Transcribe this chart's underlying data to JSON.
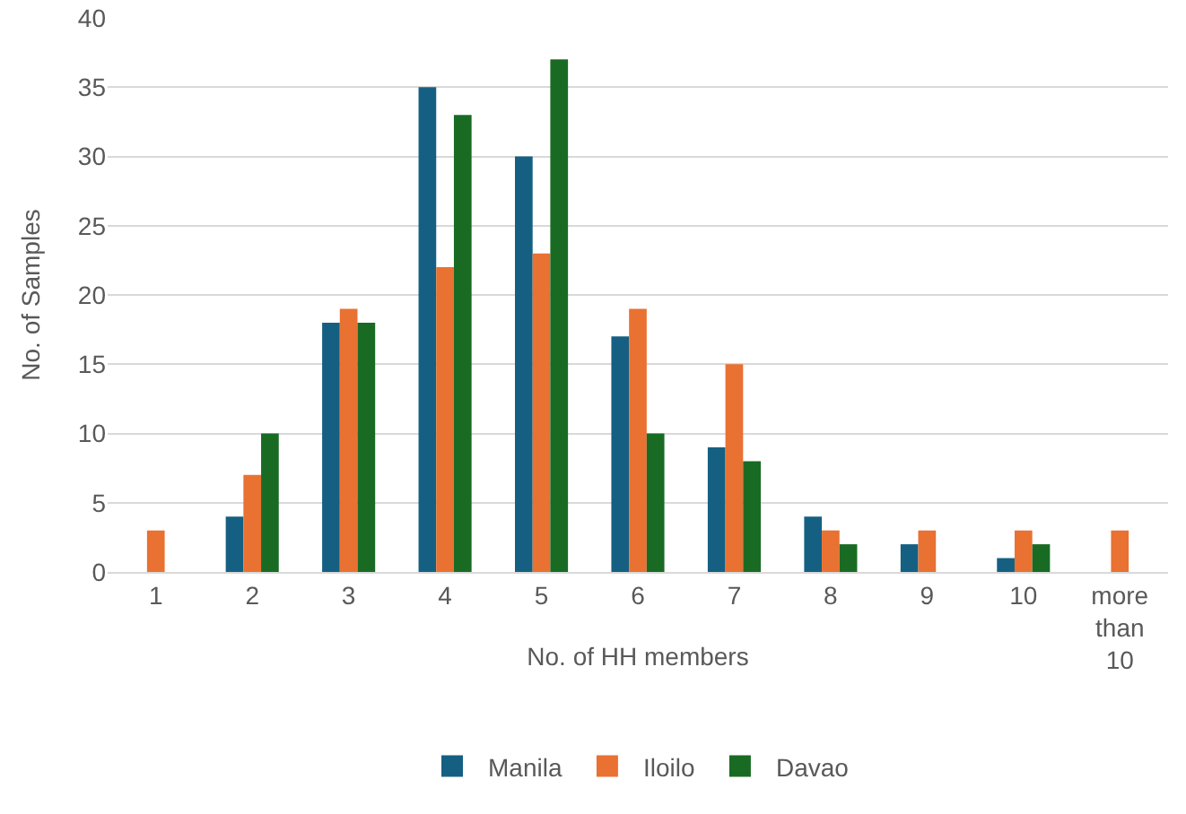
{
  "chart_data": {
    "type": "bar",
    "xlabel": "No. of HH members",
    "ylabel": "No. of Samples",
    "categories": [
      "1",
      "2",
      "3",
      "4",
      "5",
      "6",
      "7",
      "8",
      "9",
      "10",
      "more than 10"
    ],
    "series": [
      {
        "name": "Manila",
        "color": "#156082",
        "values": [
          0,
          4,
          18,
          35,
          30,
          17,
          9,
          4,
          2,
          1,
          0
        ]
      },
      {
        "name": "Iloilo",
        "color": "#e97132",
        "values": [
          3,
          7,
          19,
          22,
          23,
          19,
          15,
          3,
          3,
          3,
          3
        ]
      },
      {
        "name": "Davao",
        "color": "#196b24",
        "values": [
          0,
          10,
          18,
          33,
          37,
          10,
          8,
          2,
          0,
          2,
          0
        ]
      }
    ],
    "ylim": [
      0,
      40
    ],
    "yticks": [
      0,
      5,
      10,
      15,
      20,
      25,
      30,
      35,
      40
    ],
    "grid": "y",
    "legend": "bottom"
  }
}
